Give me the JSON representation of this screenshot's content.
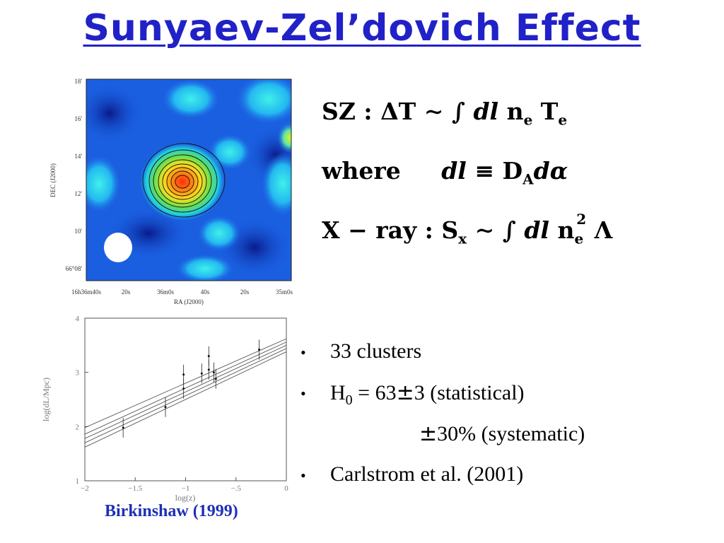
{
  "title": "Sunyaev-Zel’dovich Effect",
  "sz_map": {
    "y_axis_label": "DEC (J2000)",
    "y_ticks": [
      "18'",
      "16'",
      "14'",
      "12'",
      "10'",
      "66°08'"
    ],
    "x_axis_label": "RA (J2000)",
    "x_ticks": [
      "16h36m40s",
      "20s",
      "36m0s",
      "40s",
      "20s",
      "35m0s"
    ]
  },
  "equations": {
    "sz": "SZ : ΔT ∼ ∫ dl ne Te",
    "where": "where   dl ≡ DA dα",
    "xray": "X − ray : Sx ∼ ∫ dl ne2 Λ"
  },
  "chart_data": {
    "type": "scatter",
    "xlabel": "log(z)",
    "ylabel": "log(dL/Mpc)",
    "xlim": [
      -2,
      0
    ],
    "ylim": [
      1,
      4
    ],
    "x_ticks": [
      "−2",
      "−1.5",
      "−1",
      "−.5",
      "0"
    ],
    "y_ticks": [
      "1",
      "2",
      "3",
      "4"
    ],
    "points": [
      {
        "x": -1.62,
        "y": 1.98
      },
      {
        "x": -1.2,
        "y": 2.36
      },
      {
        "x": -1.02,
        "y": 2.7
      },
      {
        "x": -1.02,
        "y": 2.96
      },
      {
        "x": -0.84,
        "y": 2.98
      },
      {
        "x": -0.77,
        "y": 3.05
      },
      {
        "x": -0.77,
        "y": 3.3
      },
      {
        "x": -0.72,
        "y": 3.0
      },
      {
        "x": -0.7,
        "y": 2.88
      },
      {
        "x": -0.27,
        "y": 3.42
      }
    ],
    "lines": [
      {
        "x0": -2,
        "y0": 1.98,
        "x1": 0,
        "y1": 3.62
      },
      {
        "x0": -2,
        "y0": 1.86,
        "x1": 0,
        "y1": 3.56
      },
      {
        "x0": -2,
        "y0": 1.78,
        "x1": 0,
        "y1": 3.5
      },
      {
        "x0": -2,
        "y0": 1.7,
        "x1": 0,
        "y1": 3.44
      },
      {
        "x0": -2,
        "y0": 1.62,
        "x1": 0,
        "y1": 3.38
      }
    ]
  },
  "bullets": {
    "b1": "33 clusters",
    "b2_prefix": "H",
    "b2_sub": "0",
    "b2_value": " = 63",
    "pm": "±",
    "b2_stat": "3 (statistical)",
    "b3": "30%  (systematic)",
    "b4": " Carlstrom et al. (2001)",
    "bullet_char": "•"
  },
  "credit": "Birkinshaw (1999)",
  "colors": {
    "title": "#2121c8",
    "credit": "#1d2fb6"
  }
}
